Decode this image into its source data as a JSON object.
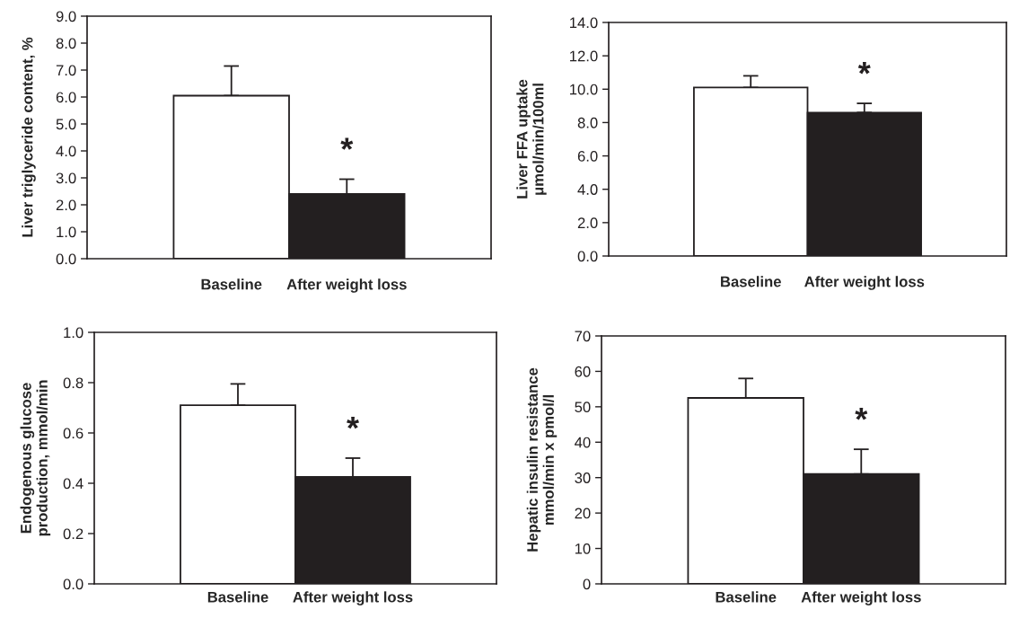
{
  "chart_data": [
    {
      "type": "bar",
      "ylabel": "Liver triglyceride content, %",
      "categories": [
        "Baseline",
        "After weight loss"
      ],
      "values": [
        6.05,
        2.4
      ],
      "colors": [
        "#ffffff",
        "#231f20"
      ],
      "errors": [
        [
          6.05,
          7.15
        ],
        [
          2.4,
          2.95
        ]
      ],
      "ylim": [
        0,
        9
      ],
      "yticks": [
        {
          "value": 0,
          "label": "0.0"
        },
        {
          "value": 1,
          "label": "1.0"
        },
        {
          "value": 2,
          "label": "2.0"
        },
        {
          "value": 3,
          "label": "3.0"
        },
        {
          "value": 4,
          "label": "4.0"
        },
        {
          "value": 5,
          "label": "5.0"
        },
        {
          "value": 6,
          "label": "6.0"
        },
        {
          "value": 7,
          "label": "7.0"
        },
        {
          "value": 8,
          "label": "8.0"
        },
        {
          "value": 9,
          "label": "9.0"
        }
      ],
      "annotations": [
        "*"
      ],
      "grid": false
    },
    {
      "type": "bar",
      "ylabel": "Liver FFA uptake\nμmol/min/100ml",
      "categories": [
        "Baseline",
        "After weight loss"
      ],
      "values": [
        10.1,
        8.6
      ],
      "colors": [
        "#ffffff",
        "#231f20"
      ],
      "errors": [
        [
          10.1,
          10.8
        ],
        [
          8.6,
          9.15
        ]
      ],
      "ylim": [
        0,
        14
      ],
      "yticks": [
        {
          "value": 0,
          "label": "0.0"
        },
        {
          "value": 2,
          "label": "2.0"
        },
        {
          "value": 4,
          "label": "4.0"
        },
        {
          "value": 6,
          "label": "6.0"
        },
        {
          "value": 8,
          "label": "8.0"
        },
        {
          "value": 10,
          "label": "10.0"
        },
        {
          "value": 12,
          "label": "12.0"
        },
        {
          "value": 14,
          "label": "14.0"
        }
      ],
      "annotations": [
        "*"
      ],
      "grid": false
    },
    {
      "type": "bar",
      "ylabel": "Endogenous glucose\nproduction, mmol/min",
      "categories": [
        "Baseline",
        "After weight loss"
      ],
      "values": [
        0.71,
        0.425
      ],
      "colors": [
        "#ffffff",
        "#231f20"
      ],
      "errors": [
        [
          0.71,
          0.795
        ],
        [
          0.425,
          0.5
        ]
      ],
      "ylim": [
        0,
        1
      ],
      "yticks": [
        {
          "value": 0,
          "label": "0.0"
        },
        {
          "value": 0.2,
          "label": "0.2"
        },
        {
          "value": 0.4,
          "label": "0.4"
        },
        {
          "value": 0.6,
          "label": "0.6"
        },
        {
          "value": 0.8,
          "label": "0.8"
        },
        {
          "value": 1,
          "label": "1.0"
        }
      ],
      "annotations": [
        "*"
      ],
      "grid": false
    },
    {
      "type": "bar",
      "ylabel": "Hepatic insulin resistance\nmmol/min x pmol/l",
      "categories": [
        "Baseline",
        "After weight loss"
      ],
      "values": [
        52.5,
        31
      ],
      "colors": [
        "#ffffff",
        "#231f20"
      ],
      "errors": [
        [
          52.5,
          58
        ],
        [
          31,
          38
        ]
      ],
      "ylim": [
        0,
        70
      ],
      "yticks": [
        0,
        10,
        20,
        30,
        40,
        50,
        60,
        70
      ],
      "annotations": [
        "*"
      ],
      "grid": false
    }
  ]
}
